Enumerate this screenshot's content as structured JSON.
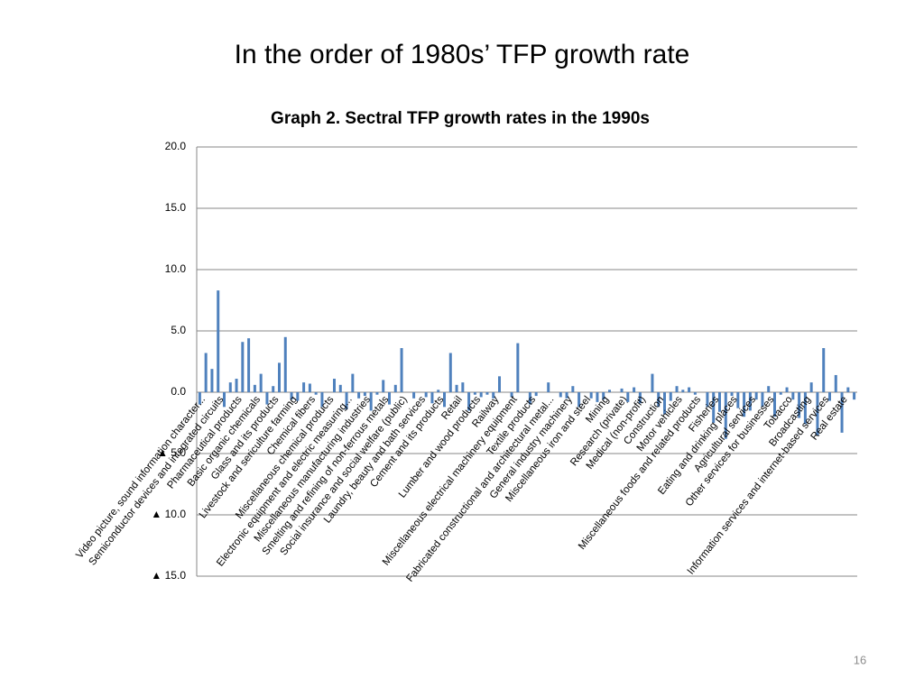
{
  "slide_title": "In the order of 1980s’ TFP growth rate",
  "page_number": "16",
  "chart_data": {
    "type": "bar",
    "title": "Graph 2. Sectral TFP growth rates in the 1990s",
    "color": "#4f81bd",
    "grid": true,
    "ylim": [
      -15,
      20
    ],
    "yticks": [
      {
        "value": 20,
        "label": "20.0"
      },
      {
        "value": 15,
        "label": "15.0"
      },
      {
        "value": 10,
        "label": "10.0"
      },
      {
        "value": 5,
        "label": "5.0"
      },
      {
        "value": 0,
        "label": "0.0"
      },
      {
        "value": -5,
        "label": "▲ 5.0"
      },
      {
        "value": -10,
        "label": "▲ 10.0"
      },
      {
        "value": -15,
        "label": "▲ 15.0"
      }
    ],
    "categories": [
      "Video picture, sound information character...",
      null,
      null,
      "Semiconductor devices and integrated circuits",
      null,
      null,
      "Pharmaceutical products",
      null,
      null,
      "Basic organic chemicals",
      null,
      null,
      "Glass and its products",
      null,
      null,
      "Livestock and sericulture farming",
      null,
      null,
      "Chemical fibers",
      null,
      null,
      "Miscellaneous chemical products",
      null,
      null,
      "Electronic equipment and electric measuring...",
      null,
      null,
      "Miscellaneous manufacturing industries",
      null,
      null,
      "Smelting and refining of non-ferrous metals",
      null,
      null,
      "Social insurance and social welfare (public)",
      null,
      null,
      "Laundry, beauty and bath services",
      null,
      null,
      "Cement and its products",
      null,
      null,
      "Retail",
      null,
      null,
      "Lumber and wood products",
      null,
      null,
      "Railway",
      null,
      null,
      "Miscellaneous electrical machinery equipment",
      null,
      null,
      "Textile products",
      null,
      null,
      "Fabricated constructional and architectural metal...",
      null,
      null,
      "General industry machinery",
      null,
      null,
      "Miscellaneous iron and steel",
      null,
      null,
      "Mining",
      null,
      null,
      "Research (private)",
      null,
      null,
      "Medical (non-profit)",
      null,
      null,
      "Construction",
      null,
      null,
      "Motor vehicles",
      null,
      null,
      "Miscellaneous foods and related products",
      null,
      null,
      "Fisheries",
      null,
      null,
      "Eating and drinking places",
      null,
      null,
      "Agricultural services",
      null,
      null,
      "Other services for businesses",
      null,
      null,
      "Tobacco",
      null,
      null,
      "Broadcasting",
      null,
      null,
      "Information services and internet-based services",
      null,
      null,
      "Real estate",
      null,
      null
    ],
    "values": [
      -1.0,
      3.2,
      1.9,
      8.3,
      -1.2,
      0.8,
      1.1,
      4.1,
      4.4,
      0.6,
      1.5,
      -1.0,
      0.5,
      2.4,
      4.5,
      -0.6,
      -0.7,
      0.8,
      0.7,
      -0.2,
      -1.2,
      0.0,
      1.1,
      0.6,
      -1.4,
      1.5,
      -0.5,
      -0.3,
      -1.5,
      -0.2,
      1.0,
      -1.0,
      0.6,
      3.6,
      0.0,
      -0.5,
      0.0,
      -0.4,
      -0.9,
      0.2,
      -1.2,
      3.2,
      0.6,
      0.8,
      -1.5,
      -0.2,
      -0.4,
      -0.2,
      -0.5,
      1.3,
      0.0,
      -0.4,
      4.0,
      0.0,
      -1.0,
      -0.3,
      0.0,
      0.8,
      0.0,
      -0.4,
      -0.5,
      0.5,
      -1.2,
      0.0,
      -0.5,
      -0.8,
      -0.6,
      0.2,
      0.0,
      0.3,
      -0.8,
      0.4,
      -0.9,
      0.0,
      1.5,
      -1.2,
      -1.8,
      -0.7,
      0.5,
      0.2,
      0.4,
      -0.2,
      0.0,
      -1.2,
      -2.5,
      -1.6,
      -3.8,
      -0.3,
      -1.3,
      -2.0,
      -1.5,
      -0.6,
      -1.2,
      0.5,
      -2.0,
      -0.2,
      0.4,
      -0.6,
      -2.1,
      -2.6,
      0.8,
      -3.5,
      3.6,
      -0.7,
      1.4,
      -3.3,
      0.4,
      -0.6
    ]
  }
}
